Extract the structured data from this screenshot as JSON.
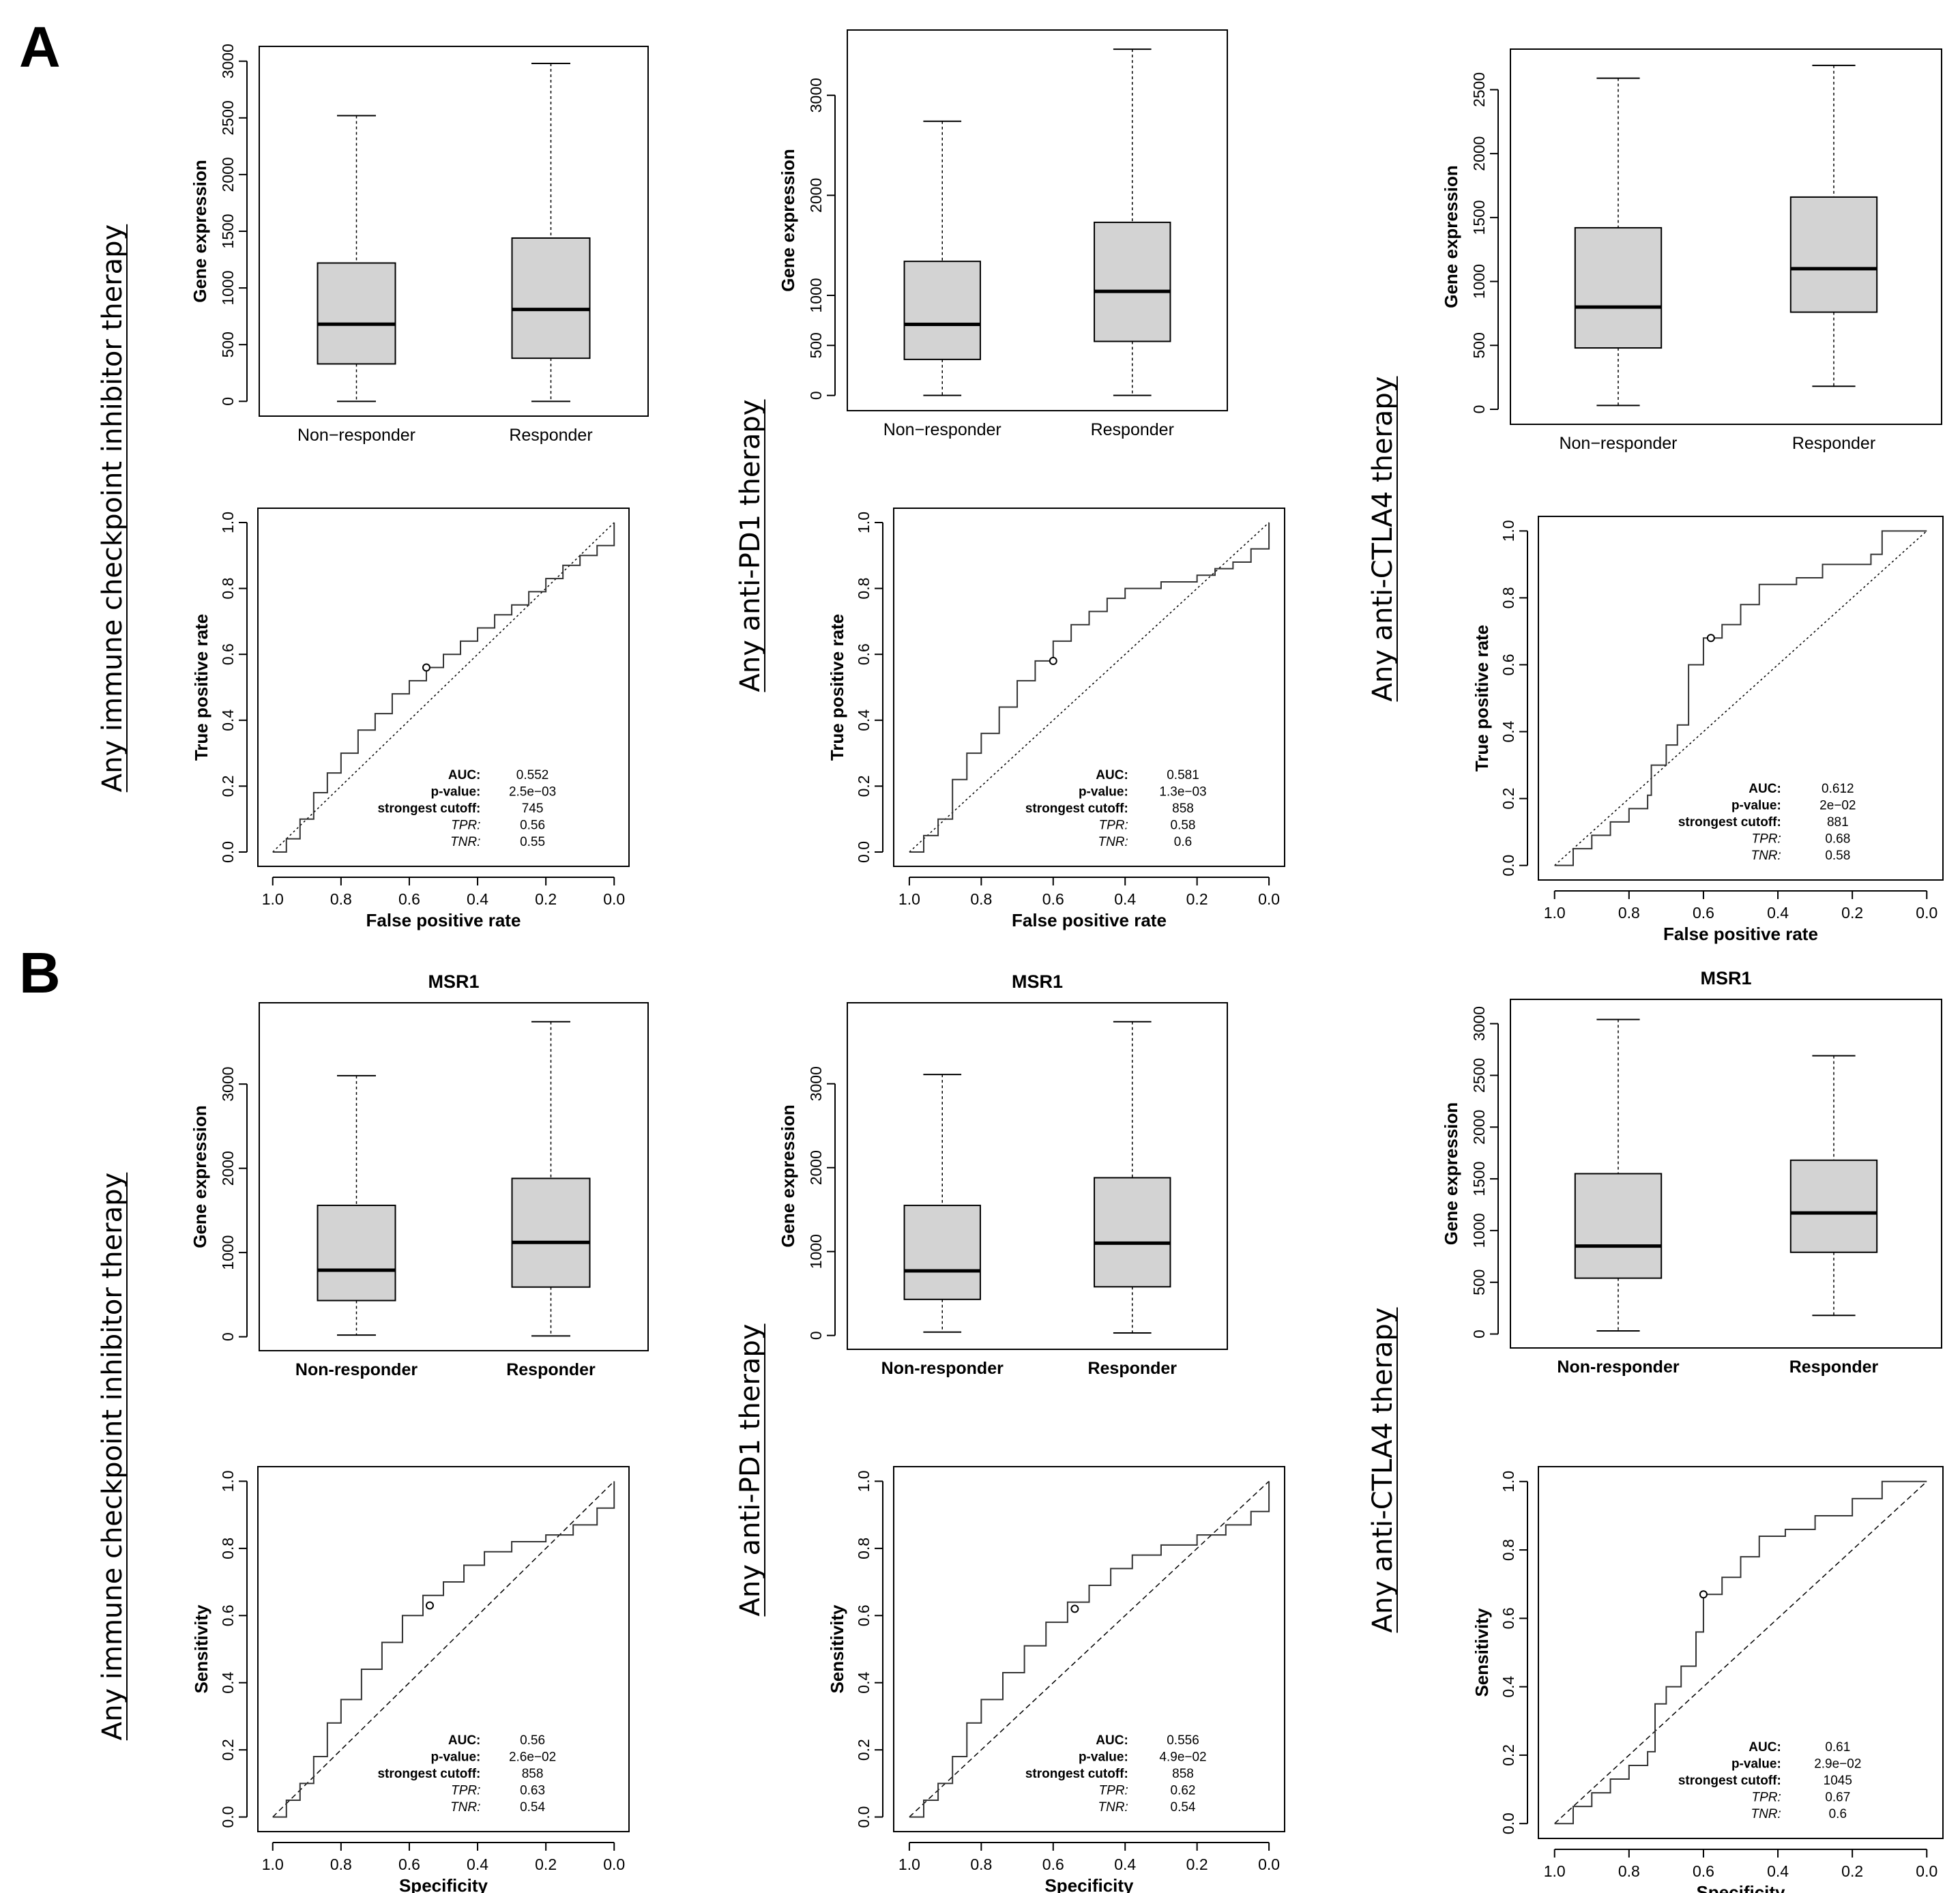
{
  "panels": [
    {
      "letter": "A",
      "row": "A"
    },
    {
      "letter": "B",
      "row": "B"
    }
  ],
  "row_titles": {
    "A": [
      "Any immune checkpoint inhibitor therapy",
      "Any anti-PD1 therapy",
      "Any anti-CTLA4 therapy"
    ],
    "B": [
      "Any immune checkpoint inhibitor therapy",
      "Any anti-PD1 therapy",
      "Any anti-CTLA4 therapy"
    ]
  },
  "stat_keys": [
    "AUC:",
    "p-value:",
    "strongest cutoff:",
    "TPR:",
    "TNR:"
  ],
  "chart_data": [
    {
      "id": "A-box-1",
      "type": "box",
      "ylabel": "Gene expression",
      "ylim": [
        0,
        3000
      ],
      "yticks": [
        0,
        500,
        1000,
        1500,
        2000,
        2500,
        3000
      ],
      "categories": [
        "Non−responder",
        "Responder"
      ],
      "boxes": [
        {
          "low": 0,
          "q1": 330,
          "median": 680,
          "q3": 1220,
          "high": 2520
        },
        {
          "low": 0,
          "q1": 380,
          "median": 810,
          "q3": 1440,
          "high": 2980
        }
      ]
    },
    {
      "id": "A-roc-1",
      "type": "line",
      "xlabel": "False positive rate",
      "ylabel": "True positive rate",
      "xlim": [
        1,
        0
      ],
      "ylim": [
        0,
        1
      ],
      "ticks": [
        "1.0",
        "0.8",
        "0.6",
        "0.4",
        "0.2",
        "0.0"
      ],
      "curve": [
        [
          0,
          0
        ],
        [
          0.04,
          0.04
        ],
        [
          0.08,
          0.1
        ],
        [
          0.12,
          0.18
        ],
        [
          0.16,
          0.24
        ],
        [
          0.2,
          0.3
        ],
        [
          0.25,
          0.37
        ],
        [
          0.3,
          0.42
        ],
        [
          0.35,
          0.48
        ],
        [
          0.4,
          0.52
        ],
        [
          0.45,
          0.56
        ],
        [
          0.5,
          0.6
        ],
        [
          0.55,
          0.64
        ],
        [
          0.6,
          0.68
        ],
        [
          0.65,
          0.72
        ],
        [
          0.7,
          0.75
        ],
        [
          0.75,
          0.79
        ],
        [
          0.8,
          0.83
        ],
        [
          0.85,
          0.87
        ],
        [
          0.9,
          0.9
        ],
        [
          0.95,
          0.93
        ],
        [
          1,
          1
        ]
      ],
      "cut": [
        0.45,
        0.56
      ],
      "stats": {
        "AUC:": "0.552",
        "p-value:": "2.5e−03",
        "strongest cutoff:": "745",
        "TPR:": "0.56",
        "TNR:": "0.55"
      }
    },
    {
      "id": "A-box-2",
      "type": "box",
      "ylabel": "Gene expression",
      "ylim": [
        0,
        3500
      ],
      "yticks": [
        0,
        500,
        1000,
        2000,
        3000
      ],
      "categories": [
        "Non−responder",
        "Responder"
      ],
      "boxes": [
        {
          "low": 0,
          "q1": 360,
          "median": 710,
          "q3": 1340,
          "high": 2740
        },
        {
          "low": 0,
          "q1": 540,
          "median": 1040,
          "q3": 1730,
          "high": 3460
        }
      ]
    },
    {
      "id": "A-roc-2",
      "type": "line",
      "xlabel": "False positive rate",
      "ylabel": "True positive rate",
      "xlim": [
        1,
        0
      ],
      "ylim": [
        0,
        1
      ],
      "ticks": [
        "1.0",
        "0.8",
        "0.6",
        "0.4",
        "0.2",
        "0.0"
      ],
      "curve": [
        [
          0,
          0
        ],
        [
          0.04,
          0.05
        ],
        [
          0.08,
          0.1
        ],
        [
          0.12,
          0.22
        ],
        [
          0.16,
          0.3
        ],
        [
          0.2,
          0.36
        ],
        [
          0.25,
          0.44
        ],
        [
          0.3,
          0.52
        ],
        [
          0.35,
          0.58
        ],
        [
          0.4,
          0.64
        ],
        [
          0.45,
          0.69
        ],
        [
          0.5,
          0.73
        ],
        [
          0.55,
          0.77
        ],
        [
          0.6,
          0.8
        ],
        [
          0.7,
          0.82
        ],
        [
          0.8,
          0.84
        ],
        [
          0.85,
          0.86
        ],
        [
          0.9,
          0.88
        ],
        [
          0.95,
          0.92
        ],
        [
          1,
          1
        ]
      ],
      "cut": [
        0.4,
        0.58
      ],
      "stats": {
        "AUC:": "0.581",
        "p-value:": "1.3e−03",
        "strongest cutoff:": "858",
        "TPR:": "0.58",
        "TNR:": "0.6"
      }
    },
    {
      "id": "A-box-3",
      "type": "box",
      "ylabel": "Gene expression",
      "ylim": [
        0,
        2700
      ],
      "yticks": [
        0,
        500,
        1000,
        1500,
        2000,
        2500
      ],
      "categories": [
        "Non−responder",
        "Responder"
      ],
      "boxes": [
        {
          "low": 30,
          "q1": 480,
          "median": 800,
          "q3": 1420,
          "high": 2590
        },
        {
          "low": 180,
          "q1": 760,
          "median": 1100,
          "q3": 1660,
          "high": 2690
        }
      ]
    },
    {
      "id": "A-roc-3",
      "type": "line",
      "xlabel": "False positive rate",
      "ylabel": "True positive rate",
      "xlim": [
        1,
        0
      ],
      "ylim": [
        0,
        1
      ],
      "ticks": [
        "1.0",
        "0.8",
        "0.6",
        "0.4",
        "0.2",
        "0.0"
      ],
      "curve": [
        [
          0,
          0
        ],
        [
          0.05,
          0.05
        ],
        [
          0.1,
          0.09
        ],
        [
          0.15,
          0.13
        ],
        [
          0.2,
          0.17
        ],
        [
          0.25,
          0.21
        ],
        [
          0.26,
          0.3
        ],
        [
          0.3,
          0.36
        ],
        [
          0.33,
          0.42
        ],
        [
          0.36,
          0.6
        ],
        [
          0.4,
          0.68
        ],
        [
          0.45,
          0.72
        ],
        [
          0.5,
          0.78
        ],
        [
          0.55,
          0.84
        ],
        [
          0.65,
          0.86
        ],
        [
          0.72,
          0.9
        ],
        [
          0.85,
          0.93
        ],
        [
          0.88,
          1
        ],
        [
          1,
          1
        ]
      ],
      "cut": [
        0.42,
        0.68
      ],
      "stats": {
        "AUC:": "0.612",
        "p-value:": "2e−02",
        "strongest cutoff:": "881",
        "TPR:": "0.68",
        "TNR:": "0.58"
      }
    },
    {
      "id": "B-box-1",
      "type": "box",
      "title": "MSR1",
      "ylabel": "Gene expression",
      "ylim": [
        0,
        3800
      ],
      "yticks": [
        0,
        1000,
        2000,
        3000
      ],
      "categories": [
        "Non-responder",
        "Responder"
      ],
      "boxes": [
        {
          "low": 20,
          "q1": 430,
          "median": 790,
          "q3": 1560,
          "high": 3100
        },
        {
          "low": 10,
          "q1": 590,
          "median": 1120,
          "q3": 1880,
          "high": 3740
        }
      ]
    },
    {
      "id": "B-roc-1",
      "type": "line",
      "xlabel": "Specificity",
      "ylabel": "Sensitivity",
      "xlim": [
        1,
        0
      ],
      "ylim": [
        0,
        1
      ],
      "ticks": [
        "1.0",
        "0.8",
        "0.6",
        "0.4",
        "0.2",
        "0.0"
      ],
      "curve": [
        [
          0,
          0
        ],
        [
          0.04,
          0.05
        ],
        [
          0.08,
          0.1
        ],
        [
          0.12,
          0.18
        ],
        [
          0.16,
          0.28
        ],
        [
          0.2,
          0.35
        ],
        [
          0.26,
          0.44
        ],
        [
          0.32,
          0.52
        ],
        [
          0.38,
          0.6
        ],
        [
          0.44,
          0.66
        ],
        [
          0.5,
          0.7
        ],
        [
          0.56,
          0.75
        ],
        [
          0.62,
          0.79
        ],
        [
          0.7,
          0.82
        ],
        [
          0.8,
          0.84
        ],
        [
          0.88,
          0.87
        ],
        [
          0.95,
          0.92
        ],
        [
          1,
          1
        ]
      ],
      "cut": [
        0.46,
        0.63
      ],
      "stats": {
        "AUC:": "0.56",
        "p-value:": "2.6e−02",
        "strongest cutoff:": "858",
        "TPR:": "0.63",
        "TNR:": "0.54"
      }
    },
    {
      "id": "B-box-2",
      "type": "box",
      "title": "MSR1",
      "ylabel": "Gene expression",
      "ylim": [
        0,
        3800
      ],
      "yticks": [
        0,
        1000,
        2000,
        3000
      ],
      "categories": [
        "Non-responder",
        "Responder"
      ],
      "boxes": [
        {
          "low": 40,
          "q1": 430,
          "median": 770,
          "q3": 1550,
          "high": 3110
        },
        {
          "low": 30,
          "q1": 580,
          "median": 1100,
          "q3": 1880,
          "high": 3740
        }
      ]
    },
    {
      "id": "B-roc-2",
      "type": "line",
      "xlabel": "Specificity",
      "ylabel": "Sensitivity",
      "xlim": [
        1,
        0
      ],
      "ylim": [
        0,
        1
      ],
      "ticks": [
        "1.0",
        "0.8",
        "0.6",
        "0.4",
        "0.2",
        "0.0"
      ],
      "curve": [
        [
          0,
          0
        ],
        [
          0.04,
          0.05
        ],
        [
          0.08,
          0.1
        ],
        [
          0.12,
          0.18
        ],
        [
          0.16,
          0.28
        ],
        [
          0.2,
          0.35
        ],
        [
          0.26,
          0.43
        ],
        [
          0.32,
          0.51
        ],
        [
          0.38,
          0.58
        ],
        [
          0.44,
          0.64
        ],
        [
          0.5,
          0.69
        ],
        [
          0.56,
          0.74
        ],
        [
          0.62,
          0.78
        ],
        [
          0.7,
          0.81
        ],
        [
          0.8,
          0.84
        ],
        [
          0.88,
          0.87
        ],
        [
          0.95,
          0.91
        ],
        [
          1,
          1
        ]
      ],
      "cut": [
        0.46,
        0.62
      ],
      "stats": {
        "AUC:": "0.556",
        "p-value:": "4.9e−02",
        "strongest cutoff:": "858",
        "TPR:": "0.62",
        "TNR:": "0.54"
      }
    },
    {
      "id": "B-box-3",
      "type": "box",
      "title": "MSR1",
      "ylabel": "Gene expression",
      "ylim": [
        0,
        3100
      ],
      "yticks": [
        0,
        500,
        1000,
        1500,
        2000,
        2500,
        3000
      ],
      "categories": [
        "Non-responder",
        "Responder"
      ],
      "boxes": [
        {
          "low": 30,
          "q1": 540,
          "median": 850,
          "q3": 1550,
          "high": 3040
        },
        {
          "low": 180,
          "q1": 790,
          "median": 1170,
          "q3": 1680,
          "high": 2690
        }
      ]
    },
    {
      "id": "B-roc-3",
      "type": "line",
      "xlabel": "Specificity",
      "ylabel": "Sensitivity",
      "xlim": [
        1,
        0
      ],
      "ylim": [
        0,
        1
      ],
      "ticks": [
        "1.0",
        "0.8",
        "0.6",
        "0.4",
        "0.2",
        "0.0"
      ],
      "curve": [
        [
          0,
          0
        ],
        [
          0.05,
          0.05
        ],
        [
          0.1,
          0.09
        ],
        [
          0.15,
          0.13
        ],
        [
          0.2,
          0.17
        ],
        [
          0.25,
          0.21
        ],
        [
          0.27,
          0.35
        ],
        [
          0.3,
          0.4
        ],
        [
          0.34,
          0.46
        ],
        [
          0.38,
          0.56
        ],
        [
          0.4,
          0.67
        ],
        [
          0.45,
          0.72
        ],
        [
          0.5,
          0.78
        ],
        [
          0.55,
          0.84
        ],
        [
          0.62,
          0.86
        ],
        [
          0.7,
          0.9
        ],
        [
          0.8,
          0.95
        ],
        [
          0.88,
          1
        ],
        [
          1,
          1
        ]
      ],
      "cut": [
        0.4,
        0.67
      ],
      "stats": {
        "AUC:": "0.61",
        "p-value:": "2.9e−02",
        "strongest cutoff:": "1045",
        "TPR:": "0.67",
        "TNR:": "0.6"
      }
    }
  ]
}
